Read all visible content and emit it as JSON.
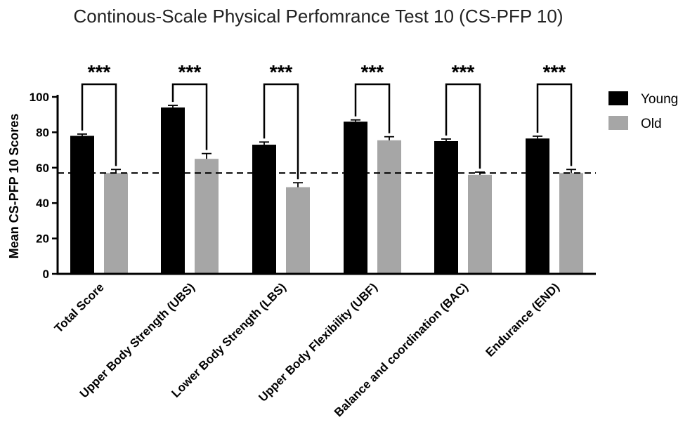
{
  "chart_data": {
    "type": "bar",
    "title": "Continous-Scale Physical Perfomrance Test 10 (CS-PFP 10)",
    "ylabel": "Mean CS-PFP 10 Scores",
    "xlabel": "",
    "ylim": [
      0,
      100
    ],
    "yticks": [
      0,
      20,
      40,
      60,
      80,
      100
    ],
    "categories": [
      "Total Score",
      "Upper Body Strength (UBS)",
      "Lower Body Strength (LBS)",
      "Upper Body Flexibility (UBF)",
      "Balance and coordination (BAC)",
      "Endurance (END)"
    ],
    "series": [
      {
        "name": "Young",
        "color": "#000000",
        "values": [
          78,
          94,
          73,
          86,
          75,
          76.5
        ],
        "errors": [
          1,
          1.2,
          1.5,
          1,
          1.2,
          1.3
        ]
      },
      {
        "name": "Old",
        "color": "#a6a6a6",
        "values": [
          57,
          65,
          49,
          75.5,
          56,
          57
        ],
        "errors": [
          2,
          3,
          2.5,
          2,
          1.5,
          2
        ]
      }
    ],
    "reference_line": {
      "value": 57,
      "style": "dashed"
    },
    "significance": [
      "***",
      "***",
      "***",
      "***",
      "***",
      "***"
    ],
    "legend_position": "top-right",
    "grid": false
  }
}
